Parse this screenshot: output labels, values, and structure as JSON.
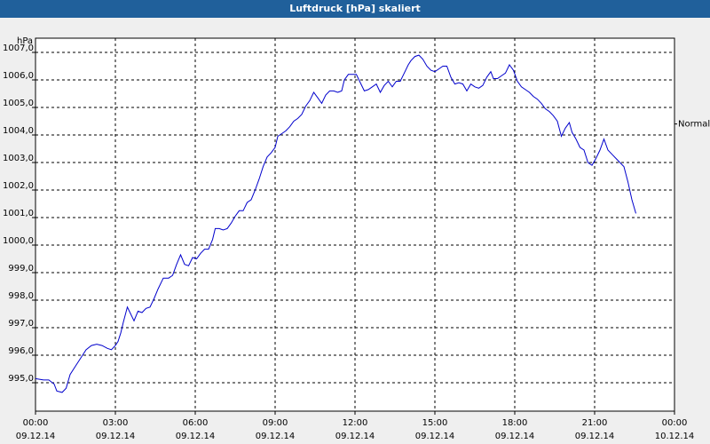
{
  "window": {
    "title": "Luftdruck [hPa] skaliert"
  },
  "chart_data": {
    "type": "line",
    "title": "Luftdruck [hPa] skaliert",
    "ylabel": "hPa",
    "ylim": [
      994.5,
      1007.0
    ],
    "y_ticks": [
      "995,0",
      "996,0",
      "997,0",
      "998,0",
      "999,0",
      "1000,0",
      "1001,0",
      "1002,0",
      "1003,0",
      "1004,0",
      "1005,0",
      "1006,0",
      "1007,0"
    ],
    "y_tick_values": [
      995,
      996,
      997,
      998,
      999,
      1000,
      1001,
      1002,
      1003,
      1004,
      1005,
      1006,
      1007
    ],
    "x_range_hours": [
      0,
      24
    ],
    "x_ticks": [
      {
        "time": "00:00",
        "date": "09.12.14",
        "hour": 0
      },
      {
        "time": "03:00",
        "date": "09.12.14",
        "hour": 3
      },
      {
        "time": "06:00",
        "date": "09.12.14",
        "hour": 6
      },
      {
        "time": "09:00",
        "date": "09.12.14",
        "hour": 9
      },
      {
        "time": "12:00",
        "date": "09.12.14",
        "hour": 12
      },
      {
        "time": "15:00",
        "date": "09.12.14",
        "hour": 15
      },
      {
        "time": "18:00",
        "date": "09.12.14",
        "hour": 18
      },
      {
        "time": "21:00",
        "date": "09.12.14",
        "hour": 21
      },
      {
        "time": "00:00",
        "date": "10.12.14",
        "hour": 24
      }
    ],
    "reference_line": {
      "label": "Normal",
      "value": 1004.4
    },
    "grid": true,
    "series": [
      {
        "color": "#0000cc",
        "points": [
          [
            0.0,
            995.15
          ],
          [
            0.3,
            995.1
          ],
          [
            0.5,
            995.1
          ],
          [
            0.7,
            994.95
          ],
          [
            0.8,
            994.7
          ],
          [
            1.0,
            994.65
          ],
          [
            1.15,
            994.8
          ],
          [
            1.3,
            995.3
          ],
          [
            1.5,
            995.6
          ],
          [
            1.7,
            995.9
          ],
          [
            1.9,
            996.2
          ],
          [
            2.1,
            996.35
          ],
          [
            2.3,
            996.4
          ],
          [
            2.5,
            996.35
          ],
          [
            2.7,
            996.25
          ],
          [
            2.85,
            996.2
          ],
          [
            3.0,
            996.35
          ],
          [
            3.1,
            996.5
          ],
          [
            3.2,
            996.8
          ],
          [
            3.3,
            997.2
          ],
          [
            3.45,
            997.75
          ],
          [
            3.55,
            997.55
          ],
          [
            3.7,
            997.25
          ],
          [
            3.85,
            997.6
          ],
          [
            4.0,
            997.55
          ],
          [
            4.15,
            997.7
          ],
          [
            4.3,
            997.75
          ],
          [
            4.45,
            998.05
          ],
          [
            4.6,
            998.4
          ],
          [
            4.8,
            998.8
          ],
          [
            5.0,
            998.8
          ],
          [
            5.15,
            998.9
          ],
          [
            5.3,
            999.3
          ],
          [
            5.45,
            999.65
          ],
          [
            5.6,
            999.3
          ],
          [
            5.75,
            999.25
          ],
          [
            5.9,
            999.55
          ],
          [
            6.05,
            999.5
          ],
          [
            6.2,
            999.7
          ],
          [
            6.35,
            999.85
          ],
          [
            6.5,
            999.85
          ],
          [
            6.65,
            1000.2
          ],
          [
            6.75,
            1000.6
          ],
          [
            6.9,
            1000.6
          ],
          [
            7.05,
            1000.55
          ],
          [
            7.2,
            1000.6
          ],
          [
            7.35,
            1000.8
          ],
          [
            7.5,
            1001.05
          ],
          [
            7.65,
            1001.25
          ],
          [
            7.8,
            1001.25
          ],
          [
            7.95,
            1001.55
          ],
          [
            8.1,
            1001.65
          ],
          [
            8.25,
            1002.0
          ],
          [
            8.4,
            1002.4
          ],
          [
            8.55,
            1002.85
          ],
          [
            8.7,
            1003.2
          ],
          [
            8.85,
            1003.35
          ],
          [
            9.0,
            1003.55
          ],
          [
            9.1,
            1003.95
          ],
          [
            9.25,
            1004.05
          ],
          [
            9.4,
            1004.15
          ],
          [
            9.55,
            1004.3
          ],
          [
            9.7,
            1004.5
          ],
          [
            9.85,
            1004.6
          ],
          [
            10.0,
            1004.75
          ],
          [
            10.15,
            1005.05
          ],
          [
            10.3,
            1005.25
          ],
          [
            10.45,
            1005.55
          ],
          [
            10.6,
            1005.35
          ],
          [
            10.75,
            1005.15
          ],
          [
            10.9,
            1005.45
          ],
          [
            11.05,
            1005.6
          ],
          [
            11.2,
            1005.6
          ],
          [
            11.35,
            1005.55
          ],
          [
            11.5,
            1005.6
          ],
          [
            11.6,
            1006.0
          ],
          [
            11.75,
            1006.2
          ],
          [
            11.9,
            1006.2
          ],
          [
            12.05,
            1006.2
          ],
          [
            12.2,
            1005.9
          ],
          [
            12.35,
            1005.6
          ],
          [
            12.5,
            1005.65
          ],
          [
            12.65,
            1005.75
          ],
          [
            12.8,
            1005.85
          ],
          [
            12.95,
            1005.55
          ],
          [
            13.1,
            1005.8
          ],
          [
            13.25,
            1005.95
          ],
          [
            13.4,
            1005.75
          ],
          [
            13.55,
            1005.95
          ],
          [
            13.7,
            1005.95
          ],
          [
            13.85,
            1006.25
          ],
          [
            14.0,
            1006.55
          ],
          [
            14.1,
            1006.7
          ],
          [
            14.25,
            1006.85
          ],
          [
            14.4,
            1006.9
          ],
          [
            14.55,
            1006.75
          ],
          [
            14.7,
            1006.5
          ],
          [
            14.85,
            1006.35
          ],
          [
            15.0,
            1006.3
          ],
          [
            15.15,
            1006.4
          ],
          [
            15.3,
            1006.5
          ],
          [
            15.45,
            1006.5
          ],
          [
            15.6,
            1006.1
          ],
          [
            15.75,
            1005.85
          ],
          [
            15.9,
            1005.9
          ],
          [
            16.05,
            1005.85
          ],
          [
            16.2,
            1005.6
          ],
          [
            16.35,
            1005.85
          ],
          [
            16.5,
            1005.75
          ],
          [
            16.65,
            1005.7
          ],
          [
            16.8,
            1005.8
          ],
          [
            16.95,
            1006.1
          ],
          [
            17.1,
            1006.3
          ],
          [
            17.2,
            1006.05
          ],
          [
            17.35,
            1006.05
          ],
          [
            17.5,
            1006.15
          ],
          [
            17.65,
            1006.25
          ],
          [
            17.8,
            1006.55
          ],
          [
            17.95,
            1006.35
          ],
          [
            18.1,
            1005.95
          ],
          [
            18.25,
            1005.75
          ],
          [
            18.4,
            1005.65
          ],
          [
            18.55,
            1005.55
          ],
          [
            18.7,
            1005.4
          ],
          [
            18.85,
            1005.3
          ],
          [
            19.0,
            1005.15
          ],
          [
            19.15,
            1004.95
          ],
          [
            19.3,
            1004.85
          ],
          [
            19.45,
            1004.7
          ],
          [
            19.6,
            1004.5
          ],
          [
            19.75,
            1003.95
          ],
          [
            19.9,
            1004.25
          ],
          [
            20.05,
            1004.45
          ],
          [
            20.15,
            1004.1
          ],
          [
            20.3,
            1003.85
          ],
          [
            20.45,
            1003.55
          ],
          [
            20.6,
            1003.45
          ],
          [
            20.75,
            1003.0
          ],
          [
            20.9,
            1002.9
          ],
          [
            21.05,
            1003.15
          ],
          [
            21.2,
            1003.45
          ],
          [
            21.35,
            1003.85
          ],
          [
            21.5,
            1003.45
          ],
          [
            21.65,
            1003.3
          ],
          [
            21.8,
            1003.15
          ],
          [
            21.95,
            1003.0
          ],
          [
            22.1,
            1002.85
          ],
          [
            22.25,
            1002.3
          ],
          [
            22.4,
            1001.65
          ],
          [
            22.55,
            1001.15
          ]
        ]
      }
    ]
  }
}
